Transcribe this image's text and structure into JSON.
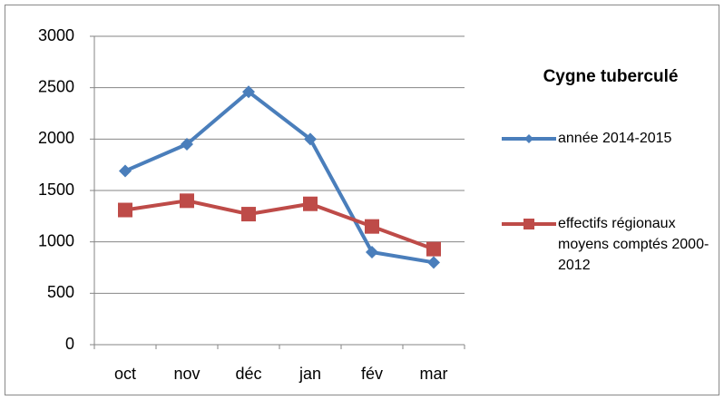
{
  "chart_data": {
    "type": "line",
    "title": "Cygne tuberculé",
    "categories": [
      "oct",
      "nov",
      "déc",
      "jan",
      "fév",
      "mar"
    ],
    "series": [
      {
        "name": "année 2014-2015",
        "color": "#4a7ebb",
        "marker": "diamond",
        "values": [
          1690,
          1950,
          2460,
          2000,
          900,
          800
        ]
      },
      {
        "name": "effectifs régionaux moyens comptés 2000-2012",
        "color": "#be4b48",
        "marker": "square",
        "values": [
          1310,
          1400,
          1270,
          1370,
          1150,
          930
        ]
      }
    ],
    "ylim": [
      0,
      3000
    ],
    "yticks": [
      0,
      500,
      1000,
      1500,
      2000,
      2500,
      3000
    ],
    "grid": true,
    "legend": "right"
  }
}
